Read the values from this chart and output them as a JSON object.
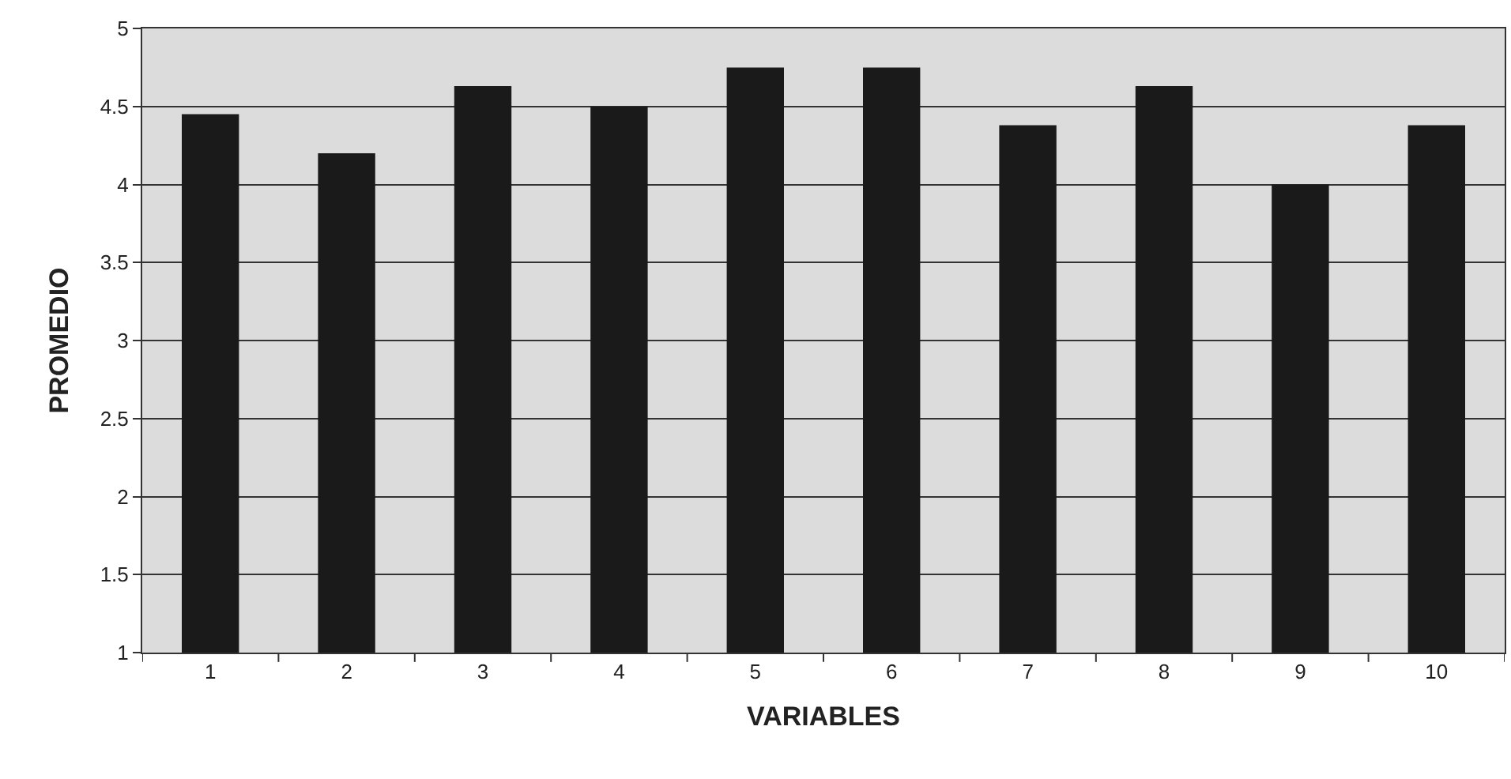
{
  "chart_data": {
    "type": "bar",
    "xlabel": "VARIABLES",
    "ylabel": "PROMEDIO",
    "categories": [
      "1",
      "2",
      "3",
      "4",
      "5",
      "6",
      "7",
      "8",
      "9",
      "10"
    ],
    "values": [
      4.45,
      4.2,
      4.63,
      4.5,
      4.75,
      4.75,
      4.38,
      4.63,
      4.0,
      4.38
    ],
    "color": "#1a1a1a",
    "ylim": [
      1,
      5
    ],
    "yticks": [
      1,
      1.5,
      2,
      2.5,
      3,
      3.5,
      4,
      4.5,
      5
    ],
    "grid": "y"
  }
}
